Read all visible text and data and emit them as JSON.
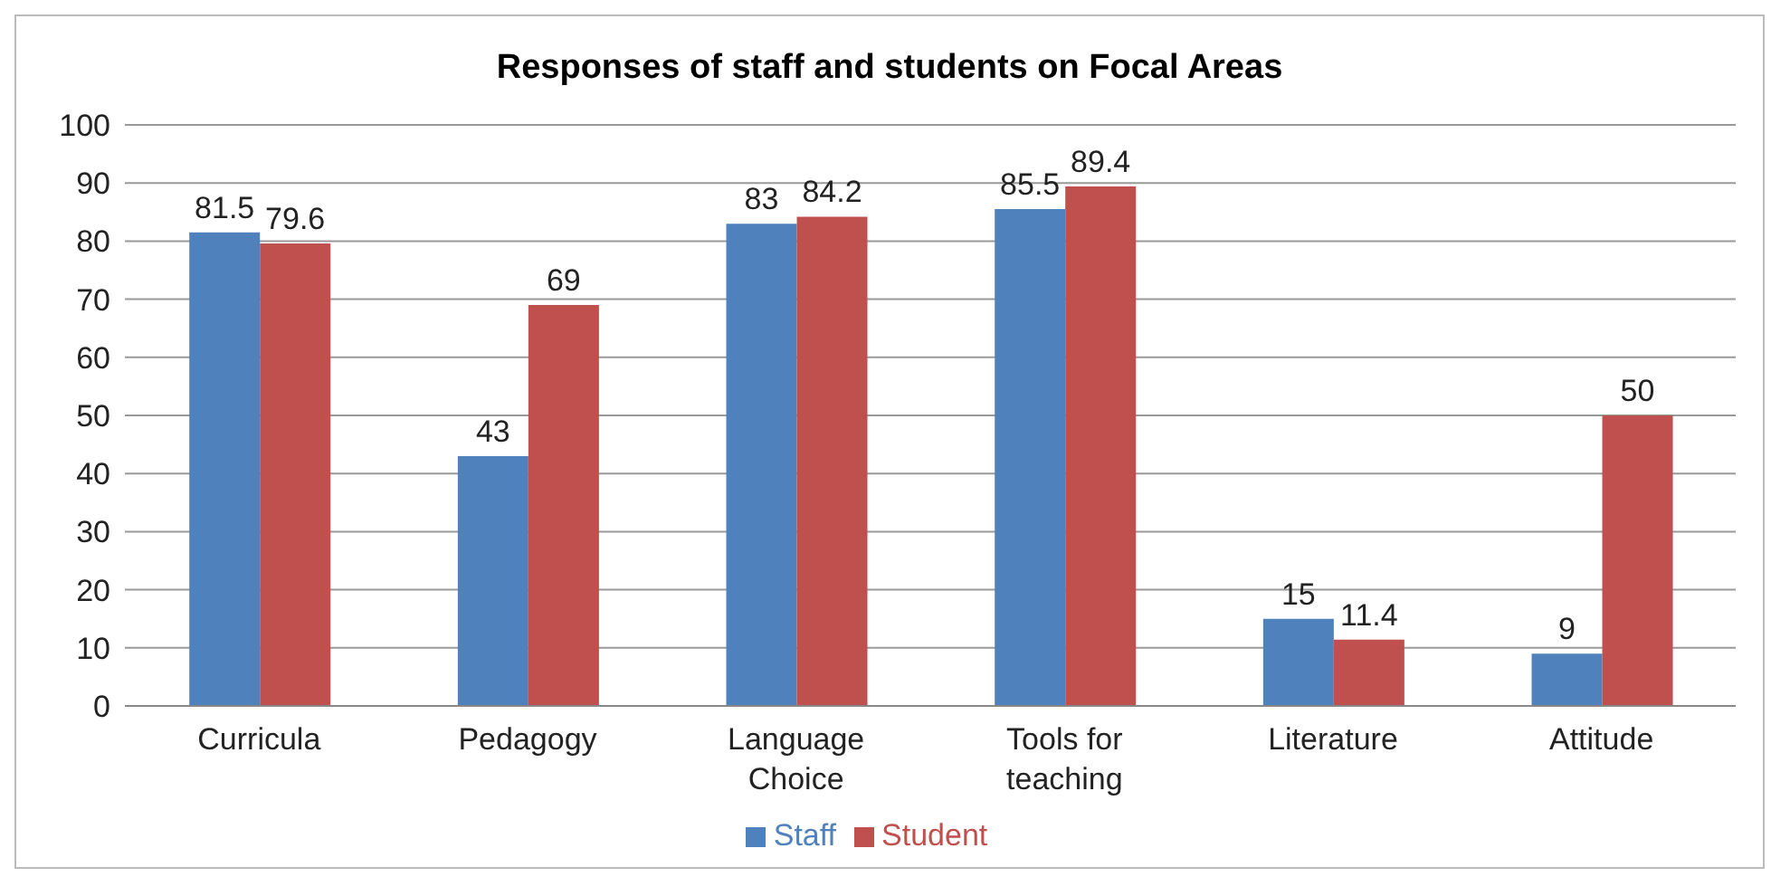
{
  "chart_data": {
    "type": "bar",
    "title": "Responses of staff and students on Focal Areas",
    "categories": [
      "Curricula",
      "Pedagogy",
      "Language Choice",
      "Tools for teaching",
      "Literature",
      "Attitude"
    ],
    "series": [
      {
        "name": "Staff",
        "color": "#4f81bd",
        "values": [
          81.5,
          43,
          83,
          85.5,
          15,
          9
        ]
      },
      {
        "name": "Student",
        "color": "#c0504d",
        "values": [
          79.6,
          69,
          84.2,
          89.4,
          11.4,
          50
        ]
      }
    ],
    "ylim": [
      0,
      100
    ],
    "yticks": [
      0,
      10,
      20,
      30,
      40,
      50,
      60,
      70,
      80,
      90,
      100
    ],
    "grid": "y",
    "legend": "bottom",
    "data_labels": true
  }
}
